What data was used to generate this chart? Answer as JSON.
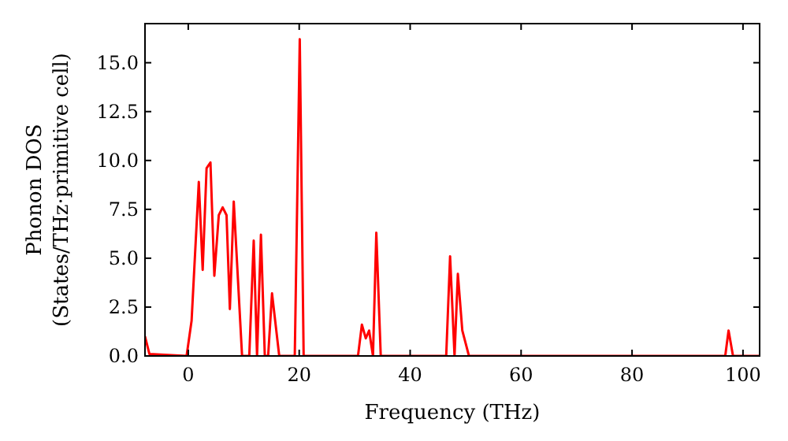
{
  "chart_data": {
    "type": "line",
    "xlabel": "Frequency (THz)",
    "ylabel": "Phonon DOS\n(States/THz·primitive cell)",
    "xlim": [
      -7.8,
      103
    ],
    "ylim": [
      0,
      17
    ],
    "xticks": [
      0,
      20,
      40,
      60,
      80,
      100
    ],
    "yticks": [
      {
        "value": 0,
        "label": "0.0"
      },
      {
        "value": 2.5,
        "label": "2.5"
      },
      {
        "value": 5,
        "label": "5.0"
      },
      {
        "value": 7.5,
        "label": "7.5"
      },
      {
        "value": 10,
        "label": "10.0"
      },
      {
        "value": 12.5,
        "label": "12.5"
      },
      {
        "value": 15,
        "label": "15.0"
      }
    ],
    "marker": "none",
    "line_style": "solid",
    "series": [
      {
        "color": "#ff0000",
        "x": [
          -7.8,
          -7,
          -0.3,
          0.6,
          1.9,
          2.6,
          3.3,
          4.0,
          4.7,
          5.5,
          6.2,
          6.9,
          7.5,
          8.2,
          9.7,
          11.0,
          11.8,
          12.4,
          13.1,
          13.8,
          14.4,
          15.1,
          16.4,
          19.2,
          20.1,
          20.8,
          30.6,
          31.3,
          32.0,
          32.6,
          33.3,
          33.9,
          34.7,
          46.5,
          47.2,
          48.0,
          48.6,
          49.4,
          50.6,
          96.8,
          97.4,
          98.2,
          103
        ],
        "values": [
          1.0,
          0.1,
          0,
          1.8,
          8.9,
          4.4,
          9.6,
          9.9,
          4.1,
          7.2,
          7.6,
          7.2,
          2.4,
          7.9,
          0,
          0,
          5.9,
          0,
          6.2,
          0,
          0,
          3.2,
          0,
          0,
          16.2,
          0,
          0,
          1.6,
          0.9,
          1.3,
          0,
          6.3,
          0,
          0,
          5.1,
          0,
          4.2,
          1.3,
          0,
          0,
          1.3,
          0,
          0
        ]
      }
    ]
  }
}
